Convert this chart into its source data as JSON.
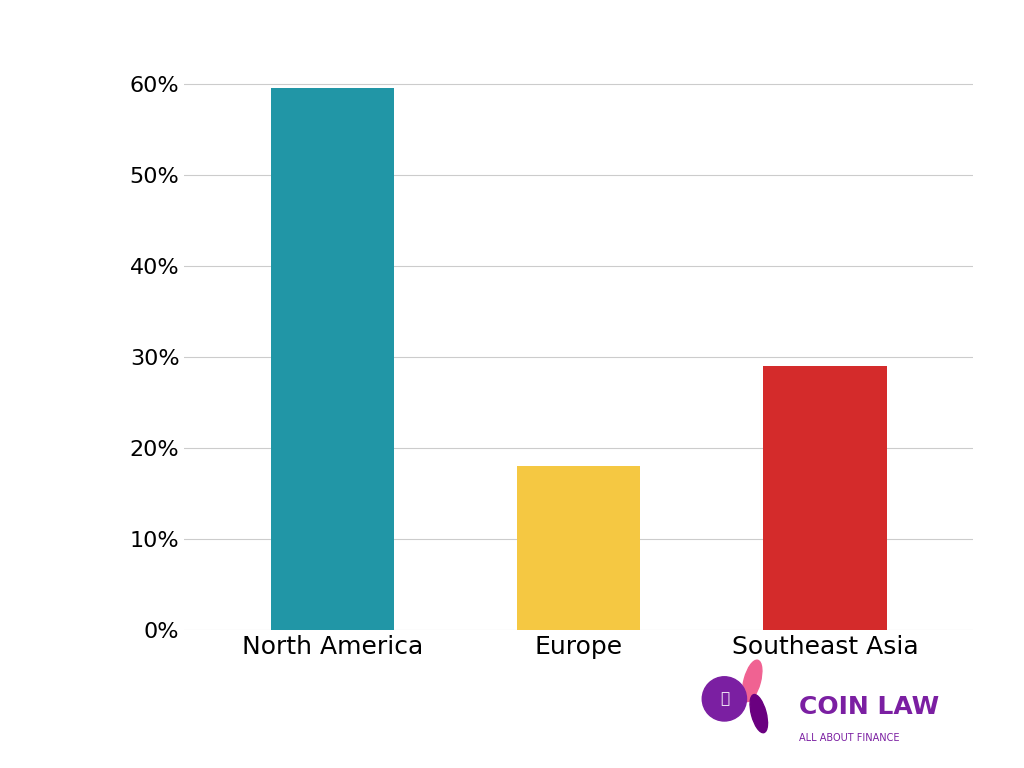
{
  "categories": [
    "North America",
    "Europe",
    "Southeast Asia"
  ],
  "values": [
    59.5,
    18.0,
    29.0
  ],
  "bar_colors": [
    "#2196A6",
    "#F5C842",
    "#D42B2B"
  ],
  "background_color": "#ffffff",
  "ylim": [
    0,
    65
  ],
  "yticks": [
    0,
    10,
    20,
    30,
    40,
    50,
    60
  ],
  "ytick_labels": [
    "0%",
    "10%",
    "20%",
    "30%",
    "40%",
    "50%",
    "60%"
  ],
  "tick_fontsize": 16,
  "label_fontsize": 18,
  "bar_width": 0.5,
  "grid_color": "#cccccc",
  "grid_linewidth": 0.8,
  "logo_text": "COIN LAW",
  "logo_subtext": "ALL ABOUT FINANCE",
  "logo_color": "#7B1FA2",
  "logo_pink": "#F06292",
  "logo_dark_purple": "#6A0080"
}
